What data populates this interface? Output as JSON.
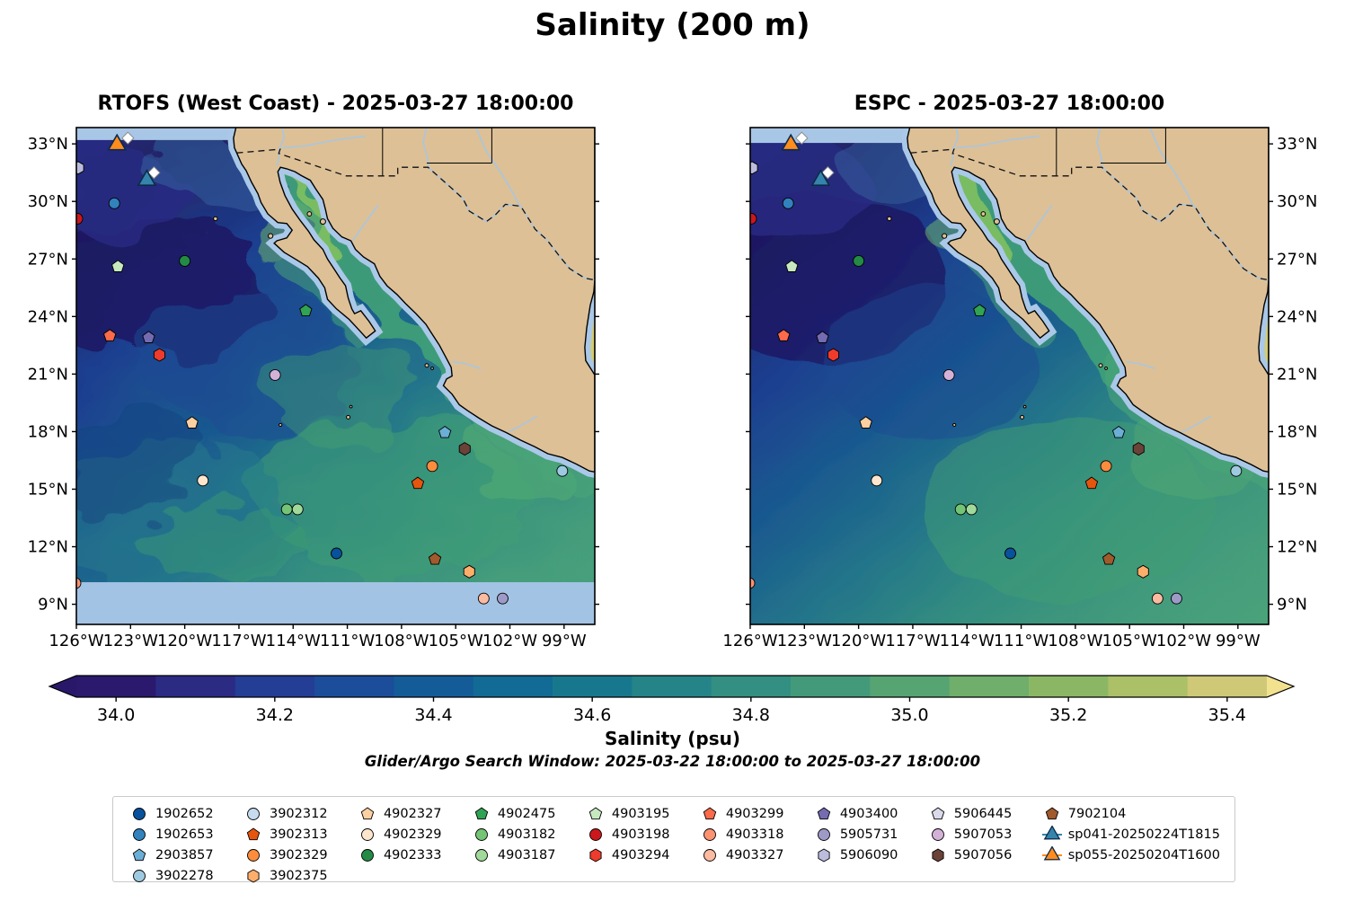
{
  "figure": {
    "title": "Salinity (200 m)"
  },
  "panels": [
    {
      "id": "rtofs",
      "title": "RTOFS (West Coast) - 2025-03-27 18:00:00"
    },
    {
      "id": "espc",
      "title": "ESPC - 2025-03-27 18:00:00"
    }
  ],
  "axes": {
    "xtick_labels": [
      "126°W",
      "123°W",
      "120°W",
      "117°W",
      "114°W",
      "111°W",
      "108°W",
      "105°W",
      "102°W",
      "99°W"
    ],
    "xtick_lons_w": [
      126,
      123,
      120,
      117,
      114,
      111,
      108,
      105,
      102,
      99
    ],
    "ytick_labels": [
      "33°N",
      "30°N",
      "27°N",
      "24°N",
      "21°N",
      "18°N",
      "15°N",
      "12°N",
      "9°N"
    ],
    "ytick_lats_n": [
      33,
      30,
      27,
      24,
      21,
      18,
      15,
      12,
      9
    ]
  },
  "colorbar": {
    "label": "Salinity (psu)",
    "tick_labels": [
      "34.0",
      "34.2",
      "34.4",
      "34.6",
      "34.8",
      "35.0",
      "35.2",
      "35.4"
    ],
    "tick_values": [
      34.0,
      34.2,
      34.4,
      34.6,
      34.8,
      35.0,
      35.2,
      35.4
    ],
    "range": [
      33.95,
      35.45
    ],
    "segment_colors": [
      "#2a196c",
      "#2b2b84",
      "#243d95",
      "#1b4d9a",
      "#145c98",
      "#116b94",
      "#17788d",
      "#248488",
      "#328f81",
      "#439a7a",
      "#57a473",
      "#6fae6b",
      "#8bb765",
      "#abc067",
      "#cfc877"
    ],
    "extend_left_color": "#29186a",
    "extend_right_color": "#f2e290"
  },
  "search_window": "Glider/Argo Search Window: 2025-03-22 18:00:00 to 2025-03-27 18:00:00",
  "legend": {
    "columns": [
      [
        {
          "label": "1902652",
          "shape": "circle",
          "color": "#08519c"
        },
        {
          "label": "1902653",
          "shape": "circle",
          "color": "#3182bd"
        },
        {
          "label": "2903857",
          "shape": "pentagon",
          "color": "#6baed6"
        },
        {
          "label": "3902278",
          "shape": "circle",
          "color": "#9ecae1"
        }
      ],
      [
        {
          "label": "3902312",
          "shape": "circle",
          "color": "#c6dbef"
        },
        {
          "label": "3902313",
          "shape": "pentagon",
          "color": "#e6550d"
        },
        {
          "label": "3902329",
          "shape": "circle",
          "color": "#fd8d3c"
        },
        {
          "label": "3902375",
          "shape": "hexagon",
          "color": "#fdae6b"
        }
      ],
      [
        {
          "label": "4902327",
          "shape": "pentagon",
          "color": "#fdd0a2"
        },
        {
          "label": "4902329",
          "shape": "circle",
          "color": "#fee6ce"
        },
        {
          "label": "4902333",
          "shape": "circle",
          "color": "#238b45"
        }
      ],
      [
        {
          "label": "4902475",
          "shape": "pentagon",
          "color": "#31a354"
        },
        {
          "label": "4903182",
          "shape": "circle",
          "color": "#74c476"
        },
        {
          "label": "4903187",
          "shape": "circle",
          "color": "#a1d99b"
        }
      ],
      [
        {
          "label": "4903195",
          "shape": "pentagon",
          "color": "#c7e9c0"
        },
        {
          "label": "4903198",
          "shape": "circle",
          "color": "#cb181d"
        },
        {
          "label": "4903294",
          "shape": "hexagon",
          "color": "#ef3b2c"
        }
      ],
      [
        {
          "label": "4903299",
          "shape": "pentagon",
          "color": "#fb6a4a"
        },
        {
          "label": "4903318",
          "shape": "circle",
          "color": "#fc9272"
        },
        {
          "label": "4903327",
          "shape": "circle",
          "color": "#fcbba1"
        }
      ],
      [
        {
          "label": "4903400",
          "shape": "pentagon",
          "color": "#756bb1"
        },
        {
          "label": "5905731",
          "shape": "circle",
          "color": "#9e9ac8"
        },
        {
          "label": "5906090",
          "shape": "hexagon",
          "color": "#bcbddc"
        }
      ],
      [
        {
          "label": "5906445",
          "shape": "pentagon",
          "color": "#dadaeb"
        },
        {
          "label": "5907053",
          "shape": "circle",
          "color": "#d4b2d8"
        },
        {
          "label": "5907056",
          "shape": "hexagon",
          "color": "#6b4237"
        }
      ],
      [
        {
          "label": "7902104",
          "shape": "pentagon",
          "color": "#a05a2c"
        },
        {
          "label": "sp041-20250224T1815",
          "shape": "triangle",
          "color": "#3584ac",
          "glider": true
        },
        {
          "label": "sp055-20250204T1600",
          "shape": "triangle",
          "color": "#ff8c1c",
          "glider": true
        }
      ]
    ]
  },
  "chart_data": {
    "type": "heatmap",
    "variable": "Salinity (psu)",
    "depth": "200 m",
    "value_range": [
      34.0,
      35.4
    ],
    "lon_extent_w": [
      126,
      97.3
    ],
    "lat_extent_n": [
      7.95,
      33.85
    ],
    "lon_ticks_w": [
      126,
      123,
      120,
      117,
      114,
      111,
      108,
      105,
      102,
      99
    ],
    "lat_ticks_n": [
      33,
      30,
      27,
      24,
      21,
      18,
      15,
      12,
      9
    ],
    "panels": [
      {
        "model": "RTOFS (West Coast)",
        "valid_time": "2025-03-27 18:00:00",
        "field_style": "eddy-rich turbulent salinity field; ~34.0 psu (dark) northwest, ~34.8 psu (green) southeast; light-blue masked band south of ~10°N and along top edge"
      },
      {
        "model": "ESPC",
        "valid_time": "2025-03-27 18:00:00",
        "field_style": "smooth salinity field; ~34.0 psu (dark) northwest, ~34.8 psu (green) southeast; light-blue masked band along top edge"
      }
    ],
    "platforms": [
      {
        "id": "1902652",
        "lon_w": 111.6,
        "lat_n": 11.65
      },
      {
        "id": "1902653",
        "lon_w": 123.9,
        "lat_n": 29.9
      },
      {
        "id": "2903857",
        "lon_w": 105.6,
        "lat_n": 17.95
      },
      {
        "id": "3902278",
        "lon_w": 99.1,
        "lat_n": 15.95
      },
      {
        "id": "3902313",
        "lon_w": 107.1,
        "lat_n": 15.3
      },
      {
        "id": "3902329",
        "lon_w": 106.3,
        "lat_n": 16.2
      },
      {
        "id": "3902375",
        "lon_w": 104.25,
        "lat_n": 10.7
      },
      {
        "id": "4902327",
        "lon_w": 119.6,
        "lat_n": 18.45
      },
      {
        "id": "4902329",
        "lon_w": 119.0,
        "lat_n": 15.45
      },
      {
        "id": "4902333",
        "lon_w": 120.0,
        "lat_n": 26.9
      },
      {
        "id": "4902475",
        "lon_w": 113.3,
        "lat_n": 24.3
      },
      {
        "id": "4903182",
        "lon_w": 114.35,
        "lat_n": 13.95
      },
      {
        "id": "4903187",
        "lon_w": 113.75,
        "lat_n": 13.95
      },
      {
        "id": "4903195",
        "lon_w": 123.7,
        "lat_n": 26.6
      },
      {
        "id": "4903198",
        "lon_w": 125.95,
        "lat_n": 29.1
      },
      {
        "id": "4903294",
        "lon_w": 121.4,
        "lat_n": 22.0
      },
      {
        "id": "4903299",
        "lon_w": 124.15,
        "lat_n": 23.0
      },
      {
        "id": "4903318",
        "lon_w": 126.05,
        "lat_n": 10.1
      },
      {
        "id": "4903327",
        "lon_w": 103.45,
        "lat_n": 9.3
      },
      {
        "id": "4903400",
        "lon_w": 122.0,
        "lat_n": 22.9
      },
      {
        "id": "5905731",
        "lon_w": 102.4,
        "lat_n": 9.3
      },
      {
        "id": "5906090",
        "lon_w": 125.9,
        "lat_n": 31.75
      },
      {
        "id": "5907053",
        "lon_w": 115.0,
        "lat_n": 20.95
      },
      {
        "id": "5907056",
        "lon_w": 104.5,
        "lat_n": 17.1
      },
      {
        "id": "7902104",
        "lon_w": 106.15,
        "lat_n": 11.35
      },
      {
        "id": "sp041-20250224T1815",
        "lon_w": 122.1,
        "lat_n": 31.1
      },
      {
        "id": "sp055-20250204T1600",
        "lon_w": 123.75,
        "lat_n": 32.95
      }
    ],
    "glider_position_diamonds": [
      {
        "lon_w": 123.15,
        "lat_n": 33.3
      },
      {
        "lon_w": 121.7,
        "lat_n": 31.5
      }
    ]
  }
}
